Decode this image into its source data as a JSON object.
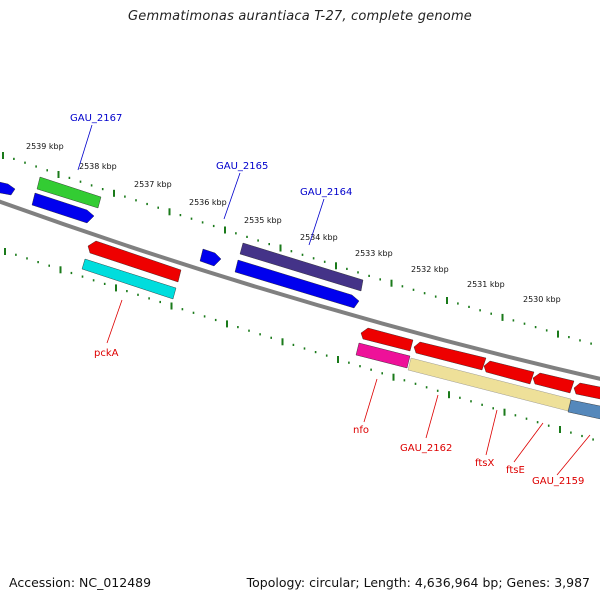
{
  "title": "Gemmatimonas aurantiaca T-27, complete genome",
  "footer": {
    "accession": "Accession: NC_012489",
    "topology": "Topology: circular; Length: 4,636,964 bp; Genes: 3,987"
  },
  "colors": {
    "backbone": "#808080",
    "tick": "#1a7a1a",
    "label_forward": "#0000cc",
    "label_reverse": "#dd0000"
  },
  "kbp_labels": [
    "2539 kbp",
    "2538 kbp",
    "2537 kbp",
    "2536 kbp",
    "2535 kbp",
    "2534 kbp",
    "2533 kbp",
    "2532 kbp",
    "2531 kbp",
    "2530 kbp"
  ],
  "gene_labels": {
    "gau2167": "GAU_2167",
    "gau2165": "GAU_2165",
    "gau2164": "GAU_2164",
    "pcka": "pckA",
    "nfo": "nfo",
    "gau2162": "GAU_2162",
    "ftsx": "ftsX",
    "ftse": "ftsE",
    "gau2159": "GAU_2159"
  },
  "features": {
    "f1": "#0000ee",
    "f2": "#33cc33",
    "f3": "#0000ee",
    "f4": "#ee0000",
    "f5": "#00dddd",
    "f6": "#0000ee",
    "f7": "#443388",
    "f8": "#0000ee",
    "f9": "#ee0000",
    "f10": "#ee1199",
    "f11": "#ee0000",
    "f12": "#ee0000",
    "f13": "#ee0000",
    "f14": "#ee0000",
    "f15": "#eee099",
    "f16": "#5588bb"
  }
}
